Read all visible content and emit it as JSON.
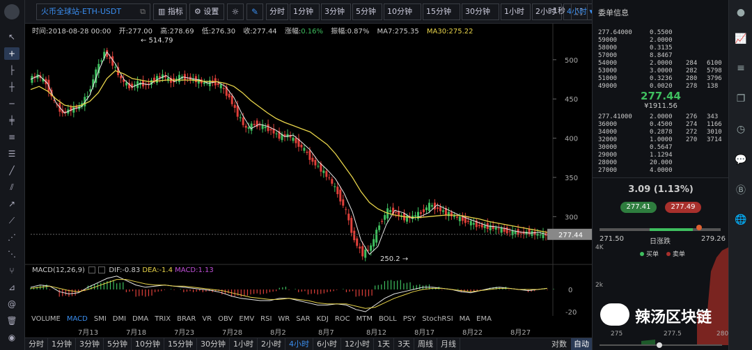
{
  "toolbar": {
    "symbol": "火币全球站-ETH-USDT",
    "indicator_label": "指标",
    "settings_label": "设置",
    "intervals": [
      "分时",
      "1分钟",
      "3分钟",
      "5分钟",
      "10分钟",
      "15分钟",
      "30分钟",
      "1小时",
      "2小时",
      "4小时"
    ],
    "active_interval": "4小时",
    "refresh": "1秒"
  },
  "info_bar": {
    "time": "时间:2018-08-28 00:00",
    "open": "开:277.00",
    "high": "高:278.69",
    "low": "低:276.30",
    "close": "收:277.44",
    "change_label": "涨幅:",
    "change_value": "0.16%",
    "amplitude": "振幅:0.87%",
    "ma7": "MA7:275.35",
    "ma30": "MA30:275.22"
  },
  "chart_labels": {
    "high_marker": "514.79",
    "low_marker": "250.2",
    "current_price": "277.44",
    "price_ticks": [
      "500",
      "450",
      "400",
      "350",
      "300"
    ],
    "macd_ticks": [
      "0",
      "-20"
    ]
  },
  "chart_data": {
    "type": "candlestick",
    "x": [
      "7月13",
      "7月18",
      "7月23",
      "7月28",
      "8月2",
      "8月7",
      "8月12",
      "8月17",
      "8月22",
      "8月27"
    ],
    "ylim": [
      240,
      530
    ],
    "close_path": [
      475,
      480,
      470,
      445,
      432,
      437,
      440,
      455,
      485,
      510,
      495,
      475,
      465,
      470,
      468,
      475,
      480,
      472,
      478,
      476,
      474,
      470,
      472,
      466,
      452,
      430,
      412,
      418,
      415,
      410,
      402,
      404,
      395,
      385,
      370,
      360,
      348,
      330,
      306,
      270,
      252,
      262,
      290,
      308,
      305,
      298,
      300,
      305,
      315,
      310,
      305,
      300,
      296,
      292,
      288,
      287,
      285,
      282,
      280,
      279,
      280,
      277
    ],
    "ma30_path": [
      462,
      466,
      460,
      450,
      442,
      440,
      442,
      447,
      458,
      476,
      486,
      482,
      476,
      474,
      472,
      473,
      474,
      474,
      474,
      474,
      473,
      472,
      472,
      470,
      466,
      458,
      448,
      440,
      432,
      425,
      420,
      416,
      412,
      408,
      400,
      392,
      380,
      365,
      350,
      332,
      318,
      310,
      305,
      302,
      300,
      299,
      299,
      300,
      301,
      302,
      302,
      301,
      299,
      297,
      294,
      292,
      290,
      288,
      286,
      284,
      282,
      280
    ],
    "macd_dif": [
      2,
      4,
      3,
      -2,
      -4,
      -3,
      2,
      6,
      10,
      12,
      8,
      4,
      2,
      3,
      4,
      3,
      2,
      1,
      0,
      -1,
      -3,
      -6,
      -8,
      -9,
      -10,
      -10,
      -8,
      -8,
      -10,
      -12,
      -14,
      -14,
      -13,
      -14,
      -18,
      -20,
      -14,
      -8,
      -4,
      -2,
      0,
      2,
      2,
      1,
      0,
      -2,
      -3,
      -1,
      1,
      2,
      1,
      0,
      -1,
      0,
      1
    ],
    "macd_dea": [
      1,
      2,
      3,
      1,
      -1,
      -2,
      0,
      3,
      6,
      9,
      9,
      7,
      5,
      4,
      4,
      3,
      3,
      2,
      1,
      0,
      -1,
      -3,
      -5,
      -7,
      -8,
      -9,
      -9,
      -8,
      -9,
      -10,
      -12,
      -13,
      -13,
      -13,
      -15,
      -17,
      -16,
      -12,
      -8,
      -5,
      -2,
      0,
      1,
      1,
      0,
      -1,
      -2,
      -1,
      0,
      1,
      1,
      0,
      0,
      0,
      1
    ],
    "series": [
      {
        "name": "MA7",
        "value": 275.35
      },
      {
        "name": "MA30",
        "value": 275.22
      }
    ]
  },
  "macd_info": {
    "title": "MACD(12,26,9)",
    "dif": "DIF:-0.83",
    "dea": "DEA:-1.4",
    "macd": "MACD:1.13"
  },
  "indicators": [
    "VOLUME",
    "MACD",
    "SMI",
    "DMI",
    "DMA",
    "TRIX",
    "BRAR",
    "VR",
    "OBV",
    "EMV",
    "RSI",
    "WR",
    "SAR",
    "KDJ",
    "ROC",
    "MTM",
    "BOLL",
    "PSY",
    "StochRSI",
    "MA",
    "EMA"
  ],
  "active_indicator": "MACD",
  "bottom_bar": {
    "intervals": [
      "分时",
      "1分钟",
      "3分钟",
      "5分钟",
      "10分钟",
      "15分钟",
      "30分钟",
      "1小时",
      "2小时",
      "4小时",
      "6小时",
      "12小时",
      "1天",
      "3天",
      "周线",
      "月线"
    ],
    "active": "4小时",
    "log_label": "对数",
    "auto_label": "自动"
  },
  "order_book": {
    "title": "委单信息",
    "asks": [
      {
        "price": "277.64000",
        "amount": "0.5500",
        "c3": "",
        "c4": ""
      },
      {
        "price": "59000",
        "amount": "2.0000",
        "c3": "",
        "c4": ""
      },
      {
        "price": "58000",
        "amount": "0.3135",
        "c3": "",
        "c4": ""
      },
      {
        "price": "57000",
        "amount": "8.8467",
        "c3": "",
        "c4": ""
      },
      {
        "price": "54000",
        "amount": "2.0000",
        "c3": "284",
        "c4": "6100"
      },
      {
        "price": "53000",
        "amount": "3.0000",
        "c3": "282",
        "c4": "5798"
      },
      {
        "price": "51000",
        "amount": "0.3236",
        "c3": "280",
        "c4": "3796"
      },
      {
        "price": "49000",
        "amount": "0.0020",
        "c3": "278",
        "c4": "138"
      }
    ],
    "last_price": "277.44",
    "last_cny": "¥1911.56",
    "bids": [
      {
        "price": "277.41000",
        "amount": "2.0000",
        "c3": "276",
        "c4": "343"
      },
      {
        "price": "36000",
        "amount": "0.4500",
        "c3": "274",
        "c4": "1166"
      },
      {
        "price": "34000",
        "amount": "0.2878",
        "c3": "272",
        "c4": "3010"
      },
      {
        "price": "32000",
        "amount": "1.0000",
        "c3": "270",
        "c4": "3714"
      },
      {
        "price": "30000",
        "amount": "0.5647",
        "c3": "",
        "c4": ""
      },
      {
        "price": "29000",
        "amount": "1.1294",
        "c3": "",
        "c4": ""
      },
      {
        "price": "28000",
        "amount": "20.000",
        "c3": "",
        "c4": ""
      },
      {
        "price": "27000",
        "amount": "4.0000",
        "c3": "",
        "c4": ""
      }
    ]
  },
  "ticker": {
    "change": "3.09",
    "change_pct": "(1.13%)",
    "bid": "277.41",
    "ask": "277.49",
    "low": "271.50",
    "range_label": "日涨跌",
    "high": "279.26",
    "range_position": 0.82
  },
  "depth": {
    "buy_label": "买单",
    "sell_label": "卖单",
    "y_ticks": [
      "4K",
      "2k"
    ],
    "x_ticks": [
      "275",
      "277.5",
      "280"
    ]
  },
  "watermark": "辣汤区块链",
  "colors": {
    "up": "#3fbf5f",
    "down": "#e0403a",
    "ma30": "#e8d44a",
    "accent": "#3a8ef0"
  }
}
